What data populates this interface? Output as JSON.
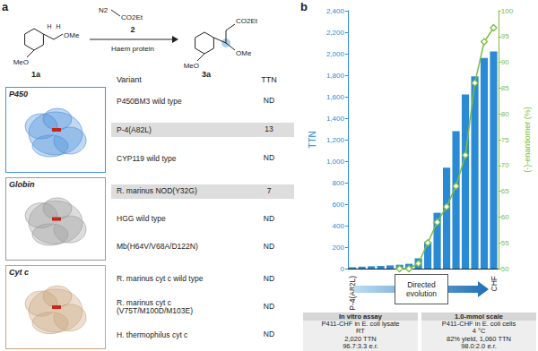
{
  "chart_data": {
    "type": "bar",
    "panel_label": "b",
    "categories": [
      "P-4(A82L)",
      null,
      null,
      null,
      null,
      null,
      null,
      null,
      null,
      null,
      null,
      null,
      null,
      null,
      null,
      "CHF"
    ],
    "series": [
      {
        "type": "bar",
        "color": "#2a8ad4",
        "values": [
          13,
          18,
          22,
          25,
          30,
          36,
          45,
          95,
          250,
          520,
          940,
          1280,
          1620,
          1790,
          1960,
          2020
        ]
      },
      {
        "type": "line",
        "axis": "y2",
        "color": "#7dbb42",
        "marker": "diamond",
        "values": [
          null,
          null,
          null,
          null,
          null,
          50,
          50,
          51,
          55,
          59,
          62,
          66,
          72,
          86,
          94,
          96.7
        ]
      }
    ],
    "ylabel": "TTN",
    "y2label": "(-)-enantiomer (%)",
    "ylim": [
      0,
      2400
    ],
    "yticks": [
      0,
      200,
      400,
      600,
      800,
      {
        "value": 1000,
        "label": "1,000"
      },
      {
        "value": 1200,
        "label": "1,200"
      },
      {
        "value": 1400,
        "label": "1,400"
      },
      {
        "value": 1600,
        "label": "1,600"
      },
      {
        "value": 1800,
        "label": "1,800"
      },
      {
        "value": 2000,
        "label": "2,000"
      },
      {
        "value": 2200,
        "label": "2,200"
      },
      {
        "value": 2400,
        "label": "2,400"
      }
    ],
    "y2lim": [
      50,
      100
    ],
    "y2ticks": [
      50,
      55,
      60,
      65,
      70,
      75,
      80,
      85,
      90,
      95,
      100
    ],
    "grid": false,
    "annotation": "Directed evolution",
    "boxes": [
      {
        "title": "In vitro assay",
        "lines": [
          "P411-CHF in E. coli lysate",
          "RT",
          "2,020 TTN",
          "96.7:3.3 e.r."
        ]
      },
      {
        "title": "1.0-mmol scale",
        "lines": [
          "P411-CHF in E. coli cells",
          "4 °C",
          "82% yield, 1,060 TTN",
          "98.0:2.0 e.r."
        ]
      }
    ]
  },
  "panel_a": {
    "label": "a",
    "scheme": {
      "substrate": {
        "id": "1a",
        "groups": [
          "MeO",
          "OMe",
          "H",
          "H"
        ]
      },
      "reagent": {
        "id": "2",
        "groups": [
          "N2",
          "CO2Et"
        ]
      },
      "conditions": "Haem protein",
      "product": {
        "id": "3a",
        "groups": [
          "MeO",
          "OMe",
          "CO2Et"
        ]
      }
    },
    "table": {
      "header": [
        "Variant",
        "TTN"
      ],
      "groups": [
        {
          "name": "P450",
          "color": "#4a90d9",
          "rows": [
            {
              "variant": "P450BM3 wild type",
              "ttn": "ND"
            },
            {
              "variant": "P-4(A82L)",
              "ttn": 13,
              "highlighted": true
            },
            {
              "variant": "CYP119 wild type",
              "ttn": "ND"
            }
          ]
        },
        {
          "name": "Globin",
          "color": "#9a9a9a",
          "rows": [
            {
              "variant": "R. marinus NOD(Y32G)",
              "ttn": 7,
              "highlighted": true
            },
            {
              "variant": "HGG wild type",
              "ttn": "ND"
            },
            {
              "variant": "Mb(H64V/V68A/D122N)",
              "ttn": "ND"
            }
          ]
        },
        {
          "name": "Cyt c",
          "color": "#c9a47a",
          "rows": [
            {
              "variant": "R. marinus cyt c wild type",
              "ttn": "ND"
            },
            {
              "variant": "R. marinus cyt c (V75T/M100D/M103E)",
              "ttn": "ND"
            },
            {
              "variant": "H. thermophilus cyt c",
              "ttn": "ND"
            }
          ]
        }
      ]
    }
  }
}
